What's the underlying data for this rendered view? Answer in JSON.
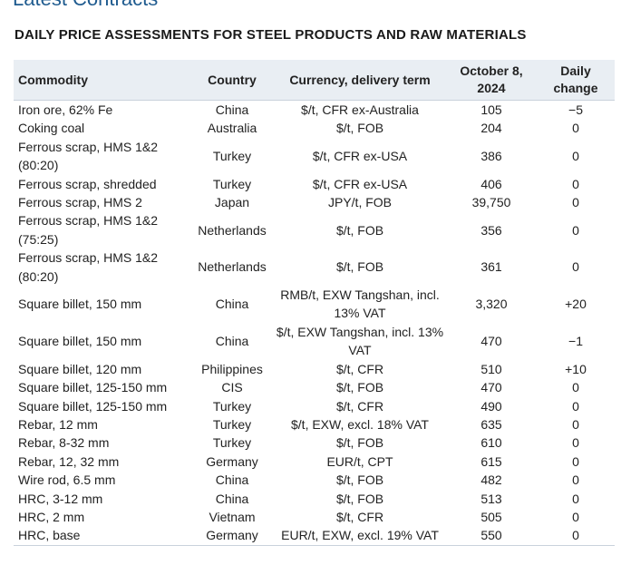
{
  "page": {
    "top_heading": "Latest Contracts",
    "title": "DAILY PRICE ASSESSMENTS FOR STEEL PRODUCTS AND RAW MATERIALS"
  },
  "table": {
    "headers": {
      "commodity": "Commodity",
      "country": "Country",
      "currency": "Currency, delivery term",
      "date": "October 8, 2024",
      "change": "Daily change"
    },
    "rows": [
      {
        "commodity": "Iron ore, 62% Fe",
        "country": "China",
        "currency": "$/t, CFR ex-Australia",
        "price": "105",
        "change": "−5"
      },
      {
        "commodity": "Coking coal",
        "country": "Australia",
        "currency": "$/t, FOB",
        "price": "204",
        "change": "0"
      },
      {
        "commodity": "Ferrous scrap, HMS 1&2 (80:20)",
        "country": "Turkey",
        "currency": "$/t, CFR ex-USA",
        "price": "386",
        "change": "0"
      },
      {
        "commodity": "Ferrous scrap, shredded",
        "country": "Turkey",
        "currency": "$/t, CFR ex-USA",
        "price": "406",
        "change": "0"
      },
      {
        "commodity": "Ferrous scrap, HMS 2",
        "country": "Japan",
        "currency": "JPY/t, FOB",
        "price": "39,750",
        "change": "0"
      },
      {
        "commodity": "Ferrous scrap, HMS 1&2 (75:25)",
        "country": "Netherlands",
        "currency": "$/t, FOB",
        "price": "356",
        "change": "0"
      },
      {
        "commodity": "Ferrous scrap, HMS 1&2 (80:20)",
        "country": "Netherlands",
        "currency": "$/t, FOB",
        "price": "361",
        "change": "0"
      },
      {
        "commodity": "Square billet, 150 mm",
        "country": "China",
        "currency": "RMB/t, EXW Tangshan, incl. 13% VAT",
        "price": "3,320",
        "change": "+20"
      },
      {
        "commodity": "Square billet, 150 mm",
        "country": "China",
        "currency": "$/t, EXW Tangshan, incl. 13% VAT",
        "price": "470",
        "change": "−1"
      },
      {
        "commodity": "Square billet, 120 mm",
        "country": "Philippines",
        "currency": "$/t, CFR",
        "price": "510",
        "change": "+10"
      },
      {
        "commodity": "Square billet, 125-150 mm",
        "country": "CIS",
        "currency": "$/t, FOB",
        "price": "470",
        "change": "0"
      },
      {
        "commodity": "Square billet, 125-150 mm",
        "country": "Turkey",
        "currency": "$/t, CFR",
        "price": "490",
        "change": "0"
      },
      {
        "commodity": "Rebar, 12 mm",
        "country": "Turkey",
        "currency": "$/t, EXW, excl. 18% VAT",
        "price": "635",
        "change": "0"
      },
      {
        "commodity": "Rebar, 8-32 mm",
        "country": "Turkey",
        "currency": "$/t, FOB",
        "price": "610",
        "change": "0"
      },
      {
        "commodity": "Rebar, 12, 32 mm",
        "country": "Germany",
        "currency": "EUR/t, CPT",
        "price": "615",
        "change": "0"
      },
      {
        "commodity": "Wire rod, 6.5 mm",
        "country": "China",
        "currency": "$/t, FOB",
        "price": "482",
        "change": "0"
      },
      {
        "commodity": "HRC, 3-12 mm",
        "country": "China",
        "currency": "$/t, FOB",
        "price": "513",
        "change": "0"
      },
      {
        "commodity": "HRC, 2 mm",
        "country": "Vietnam",
        "currency": "$/t, CFR",
        "price": "505",
        "change": "0"
      },
      {
        "commodity": "HRC, base",
        "country": "Germany",
        "currency": "EUR/t, EXW, excl. 19% VAT",
        "price": "550",
        "change": "0"
      }
    ]
  }
}
